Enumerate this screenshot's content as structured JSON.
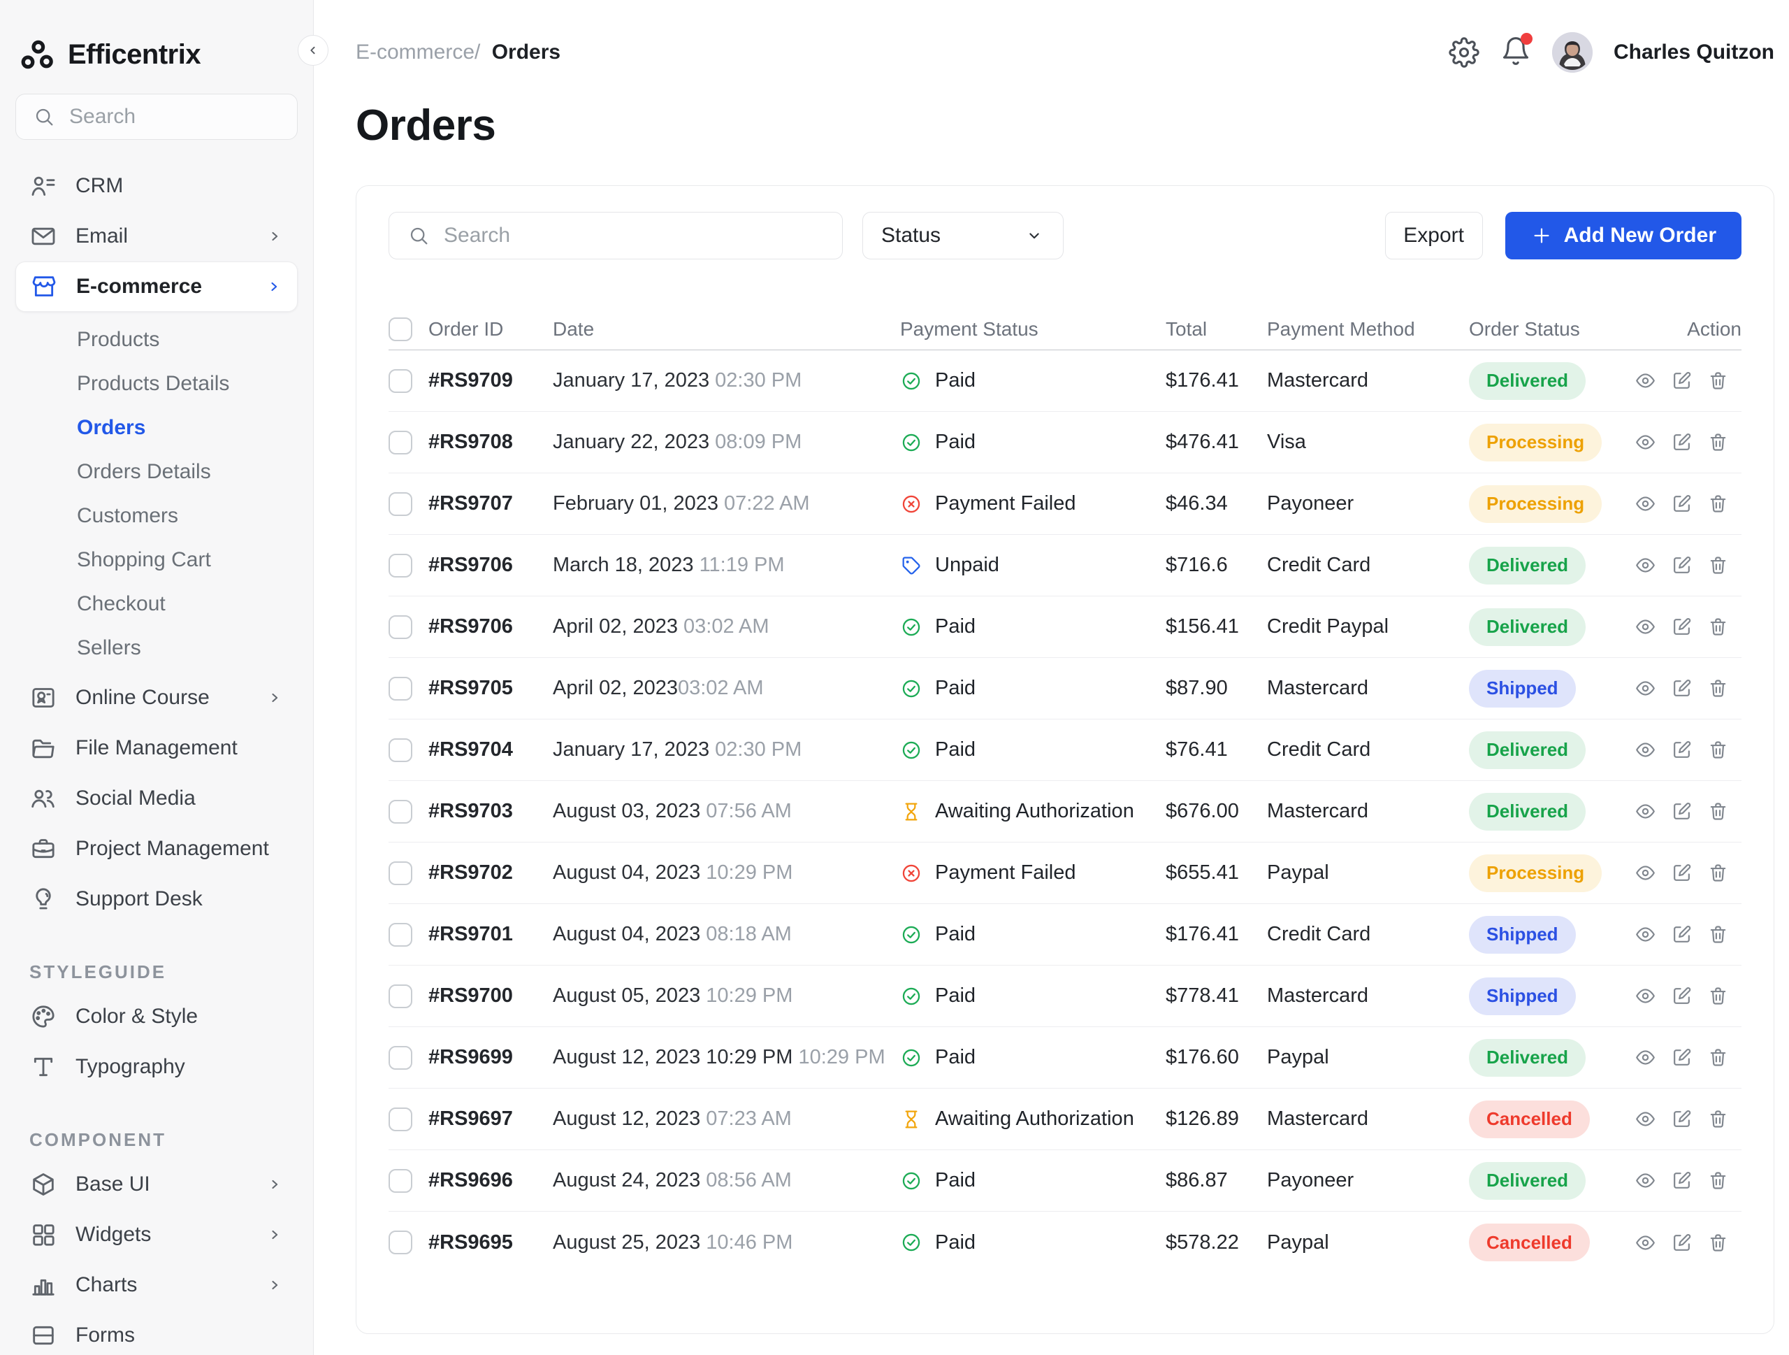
{
  "app": {
    "name": "Efficentrix"
  },
  "colors": {
    "accent": "#2258e8",
    "paid_green": "#1cab55",
    "failed_red": "#f04438",
    "unpaid_blue": "#2563eb",
    "awaiting_amber": "#f2a50c",
    "badge_delivered_text": "#17a34a",
    "badge_delivered_bg": "#e2f3e8",
    "badge_processing_text": "#eda103",
    "badge_processing_bg": "#fdf3dc",
    "badge_shipped_text": "#2b50e3",
    "badge_shipped_bg": "#dfe4fb",
    "badge_cancelled_text": "#ee3a2c",
    "badge_cancelled_bg": "#fcdfdc",
    "notification_dot": "#f03e3e"
  },
  "sidebar": {
    "search_placeholder": "Search",
    "items": [
      {
        "label": "CRM",
        "icon": "crm-icon",
        "type": "item"
      },
      {
        "label": "Email",
        "icon": "email-icon",
        "type": "item",
        "chevron": true
      },
      {
        "label": "E-commerce",
        "icon": "ecommerce-icon",
        "type": "item",
        "chevron": true,
        "active": true
      },
      {
        "label": "Products",
        "type": "sub"
      },
      {
        "label": "Products Details",
        "type": "sub"
      },
      {
        "label": "Orders",
        "type": "sub",
        "active": true
      },
      {
        "label": "Orders Details",
        "type": "sub"
      },
      {
        "label": "Customers",
        "type": "sub"
      },
      {
        "label": "Shopping Cart",
        "type": "sub"
      },
      {
        "label": "Checkout",
        "type": "sub"
      },
      {
        "label": "Sellers",
        "type": "sub"
      },
      {
        "label": "Online Course",
        "icon": "online-course-icon",
        "type": "item",
        "chevron": true
      },
      {
        "label": "File Management",
        "icon": "file-management-icon",
        "type": "item"
      },
      {
        "label": "Social Media",
        "icon": "social-media-icon",
        "type": "item"
      },
      {
        "label": "Project Management",
        "icon": "project-management-icon",
        "type": "item"
      },
      {
        "label": "Support Desk",
        "icon": "support-desk-icon",
        "type": "item"
      },
      {
        "label": "STYLEGUIDE",
        "type": "section"
      },
      {
        "label": "Color & Style",
        "icon": "color-style-icon",
        "type": "item"
      },
      {
        "label": "Typography",
        "icon": "typography-icon",
        "type": "item"
      },
      {
        "label": "COMPONENT",
        "type": "section"
      },
      {
        "label": "Base UI",
        "icon": "base-ui-icon",
        "type": "item",
        "chevron": true
      },
      {
        "label": "Widgets",
        "icon": "widgets-icon",
        "type": "item",
        "chevron": true
      },
      {
        "label": "Charts",
        "icon": "charts-icon",
        "type": "item",
        "chevron": true
      },
      {
        "label": "Forms",
        "icon": "forms-icon",
        "type": "item"
      }
    ]
  },
  "header": {
    "breadcrumb": {
      "section": "E-commerce/",
      "current": "Orders"
    },
    "user": {
      "name": "Charles Quitzon"
    }
  },
  "page": {
    "title": "Orders"
  },
  "toolbar": {
    "search_placeholder": "Search",
    "status_label": "Status",
    "export_label": "Export",
    "add_label": "Add New Order"
  },
  "table": {
    "columns": [
      "Order ID",
      "Date",
      "Payment Status",
      "Total",
      "Payment Method",
      "Order Status",
      "Action"
    ],
    "rows": [
      {
        "id": "#RS9709",
        "date": "January 17, 2023",
        "time": "02:30 PM",
        "payment_status": "Paid",
        "total": "$176.41",
        "method": "Mastercard",
        "order_status": "Delivered"
      },
      {
        "id": "#RS9708",
        "date": "January 22, 2023",
        "time": "08:09 PM",
        "payment_status": "Paid",
        "total": "$476.41",
        "method": "Visa",
        "order_status": "Processing"
      },
      {
        "id": "#RS9707",
        "date": "February 01, 2023",
        "time": "07:22 AM",
        "payment_status": "Payment Failed",
        "total": "$46.34",
        "method": "Payoneer",
        "order_status": "Processing"
      },
      {
        "id": "#RS9706",
        "date": "March 18, 2023",
        "time": "11:19 PM",
        "payment_status": "Unpaid",
        "total": "$716.6",
        "method": "Credit Card",
        "order_status": "Delivered"
      },
      {
        "id": "#RS9706",
        "date": "April 02, 2023",
        "time": "03:02 AM",
        "payment_status": "Paid",
        "total": "$156.41",
        "method": "Credit Paypal",
        "order_status": "Delivered"
      },
      {
        "id": "#RS9705",
        "date": "April 02, 2023",
        "time": "03:02 AM",
        "no_gap": true,
        "payment_status": "Paid",
        "total": "$87.90",
        "method": "Mastercard",
        "order_status": "Shipped"
      },
      {
        "id": "#RS9704",
        "date": "January 17, 2023",
        "time": "02:30 PM",
        "payment_status": "Paid",
        "total": "$76.41",
        "method": "Credit Card",
        "order_status": "Delivered"
      },
      {
        "id": "#RS9703",
        "date": "August 03, 2023",
        "time": "07:56 AM",
        "payment_status": "Awaiting Authorization",
        "total": "$676.00",
        "method": "Mastercard",
        "order_status": "Delivered"
      },
      {
        "id": "#RS9702",
        "date": "August 04, 2023",
        "time": "10:29 PM",
        "payment_status": "Payment Failed",
        "total": "$655.41",
        "method": "Paypal",
        "order_status": "Processing"
      },
      {
        "id": "#RS9701",
        "date": "August 04, 2023",
        "time": "08:18 AM",
        "payment_status": "Paid",
        "total": "$176.41",
        "method": "Credit Card",
        "order_status": "Shipped"
      },
      {
        "id": "#RS9700",
        "date": "August 05, 2023",
        "time": "10:29 PM",
        "payment_status": "Paid",
        "total": "$778.41",
        "method": "Mastercard",
        "order_status": "Shipped"
      },
      {
        "id": "#RS9699",
        "date": "August 12, 2023 10:29 PM",
        "time": "10:29 PM",
        "payment_status": "Paid",
        "total": "$176.60",
        "method": "Paypal",
        "order_status": "Delivered"
      },
      {
        "id": "#RS9697",
        "date": "August 12, 2023",
        "time": "07:23 AM",
        "payment_status": "Awaiting Authorization",
        "total": "$126.89",
        "method": "Mastercard",
        "order_status": "Cancelled"
      },
      {
        "id": "#RS9696",
        "date": "August 24, 2023",
        "time": "08:56 AM",
        "payment_status": "Paid",
        "total": "$86.87",
        "method": "Payoneer",
        "order_status": "Delivered"
      },
      {
        "id": "#RS9695",
        "date": "August 25, 2023",
        "time": "10:46 PM",
        "payment_status": "Paid",
        "total": "$578.22",
        "method": "Paypal",
        "order_status": "Cancelled"
      }
    ]
  }
}
